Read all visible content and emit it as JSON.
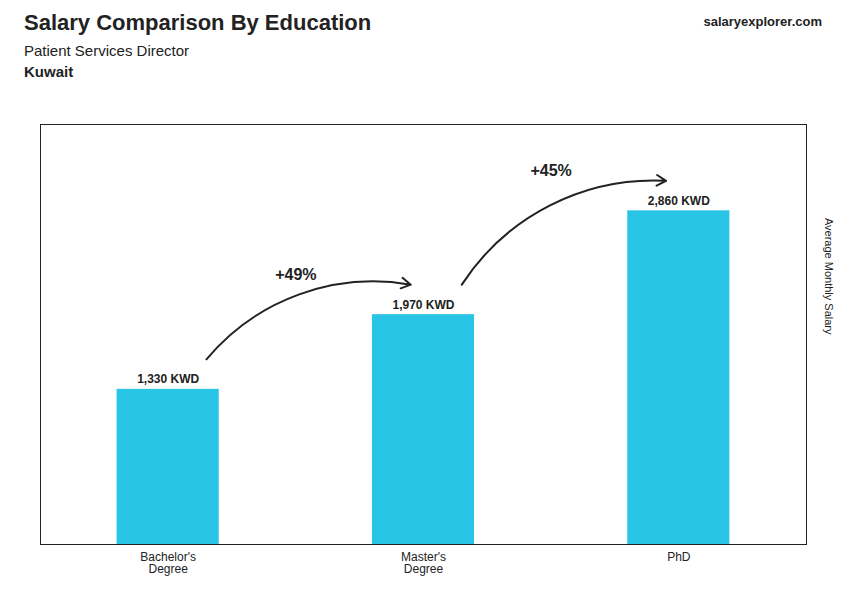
{
  "chart_data": {
    "type": "bar",
    "title": "Salary Comparison By Education",
    "subtitle": "Patient Services Director",
    "country": "Kuwait",
    "watermark": [
      "salary",
      "explorer",
      ".com"
    ],
    "ylabel": "Average Monthly Salary",
    "categories": [
      "Bachelor's\nDegree",
      "Master's\nDegree",
      "PhD"
    ],
    "values": [
      1330,
      1970,
      2860
    ],
    "value_labels": [
      "1,330 KWD",
      "1,970 KWD",
      "2,860 KWD"
    ],
    "data_labels": true,
    "annotations": [
      "+49%",
      "+45%"
    ],
    "color": "#29c5e6",
    "ylim": [
      0,
      3600
    ],
    "tick_labels": "x",
    "grid": false
  }
}
